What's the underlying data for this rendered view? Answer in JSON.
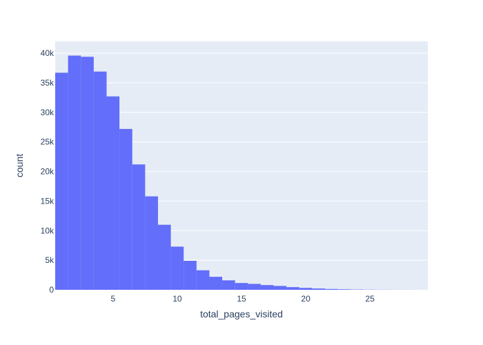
{
  "chart_data": {
    "type": "bar",
    "subtype": "histogram",
    "xlabel": "total_pages_visited",
    "ylabel": "count",
    "bin_width": 1,
    "bins": [
      {
        "x0": 0.5,
        "x1": 1.5,
        "count": 36700
      },
      {
        "x0": 1.5,
        "x1": 2.5,
        "count": 39600
      },
      {
        "x0": 2.5,
        "x1": 3.5,
        "count": 39400
      },
      {
        "x0": 3.5,
        "x1": 4.5,
        "count": 36900
      },
      {
        "x0": 4.5,
        "x1": 5.5,
        "count": 32700
      },
      {
        "x0": 5.5,
        "x1": 6.5,
        "count": 27200
      },
      {
        "x0": 6.5,
        "x1": 7.5,
        "count": 21200
      },
      {
        "x0": 7.5,
        "x1": 8.5,
        "count": 15800
      },
      {
        "x0": 8.5,
        "x1": 9.5,
        "count": 11000
      },
      {
        "x0": 9.5,
        "x1": 10.5,
        "count": 7300
      },
      {
        "x0": 10.5,
        "x1": 11.5,
        "count": 4900
      },
      {
        "x0": 11.5,
        "x1": 12.5,
        "count": 3300
      },
      {
        "x0": 12.5,
        "x1": 13.5,
        "count": 2200
      },
      {
        "x0": 13.5,
        "x1": 14.5,
        "count": 1600
      },
      {
        "x0": 14.5,
        "x1": 15.5,
        "count": 1150
      },
      {
        "x0": 15.5,
        "x1": 16.5,
        "count": 1000
      },
      {
        "x0": 16.5,
        "x1": 17.5,
        "count": 800
      },
      {
        "x0": 17.5,
        "x1": 18.5,
        "count": 650
      },
      {
        "x0": 18.5,
        "x1": 19.5,
        "count": 450
      },
      {
        "x0": 19.5,
        "x1": 20.5,
        "count": 320
      },
      {
        "x0": 20.5,
        "x1": 21.5,
        "count": 220
      },
      {
        "x0": 21.5,
        "x1": 22.5,
        "count": 140
      },
      {
        "x0": 22.5,
        "x1": 23.5,
        "count": 90
      },
      {
        "x0": 23.5,
        "x1": 24.5,
        "count": 50
      },
      {
        "x0": 24.5,
        "x1": 25.5,
        "count": 30
      },
      {
        "x0": 25.5,
        "x1": 26.5,
        "count": 18
      },
      {
        "x0": 26.5,
        "x1": 27.5,
        "count": 10
      },
      {
        "x0": 27.5,
        "x1": 28.5,
        "count": 5
      }
    ],
    "xlim": [
      0.5,
      29.5
    ],
    "ylim": [
      0,
      42000
    ],
    "x_ticks": [
      5,
      10,
      15,
      20,
      25
    ],
    "x_tick_labels": [
      "5",
      "10",
      "15",
      "20",
      "25"
    ],
    "y_ticks": [
      0,
      5000,
      10000,
      15000,
      20000,
      25000,
      30000,
      35000,
      40000
    ],
    "y_tick_labels": [
      "0",
      "5k",
      "10k",
      "15k",
      "20k",
      "25k",
      "30k",
      "35k",
      "40k"
    ],
    "grid": true,
    "colors": {
      "bar": "#636efa",
      "plot_bg": "#e5ecf6",
      "grid": "#ffffff",
      "text": "#2a3f5f"
    }
  }
}
